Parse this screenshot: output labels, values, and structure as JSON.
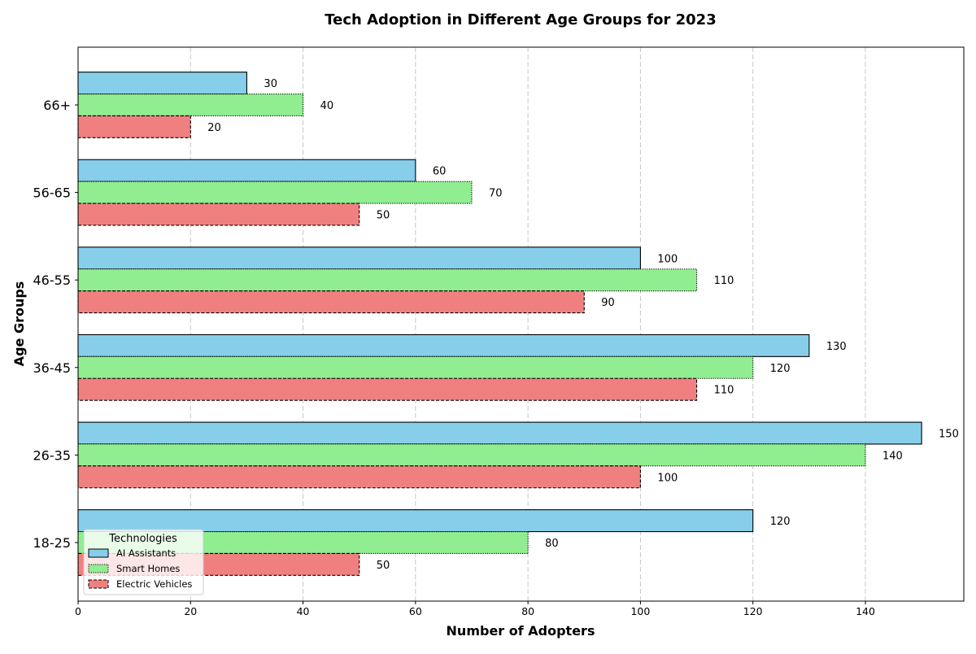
{
  "chart_data": {
    "type": "bar",
    "orientation": "horizontal",
    "title": "Tech Adoption in Different Age Groups for 2023",
    "xlabel": "Number of Adopters",
    "ylabel": "Age Groups",
    "categories": [
      "18-25",
      "26-35",
      "36-45",
      "46-55",
      "56-65",
      "66+"
    ],
    "series": [
      {
        "name": "AI Assistants",
        "values": [
          120,
          150,
          130,
          100,
          60,
          30
        ],
        "color": "#87ceeb",
        "border": "solid"
      },
      {
        "name": "Smart Homes",
        "values": [
          80,
          140,
          120,
          110,
          70,
          40
        ],
        "color": "#90ee90",
        "border": "dotted"
      },
      {
        "name": "Electric Vehicles",
        "values": [
          50,
          100,
          110,
          90,
          50,
          20
        ],
        "color": "#f08080",
        "border": "dashed"
      }
    ],
    "xlim": [
      0,
      157.5
    ],
    "xticks": [
      0,
      20,
      40,
      60,
      80,
      100,
      120,
      140
    ],
    "grid": "x-dashed",
    "legend": {
      "title": "Technologies",
      "placement": "lower-left"
    }
  }
}
